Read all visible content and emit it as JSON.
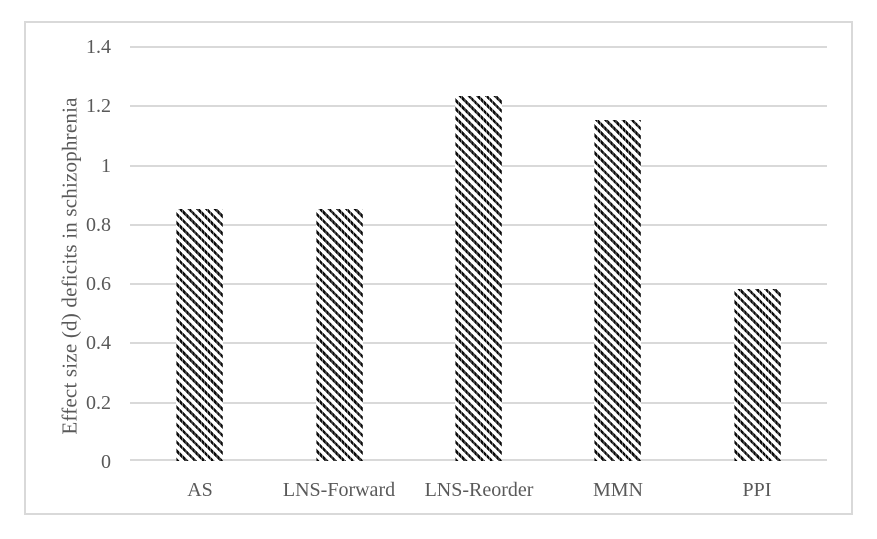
{
  "chart_data": {
    "type": "bar",
    "title": "",
    "xlabel": "",
    "ylabel": "Effect size (d) deficits in schizophrenia",
    "categories": [
      "AS",
      "LNS-Forward",
      "LNS-Reorder",
      "MMN",
      "PPI"
    ],
    "values": [
      0.85,
      0.85,
      1.23,
      1.15,
      0.58
    ],
    "yticks": [
      0,
      0.2,
      0.4,
      0.6,
      0.8,
      1,
      1.2,
      1.4
    ],
    "ytick_labels": [
      "0",
      "0.2",
      "0.4",
      "0.6",
      "0.8",
      "1",
      "1.2",
      "1.4"
    ],
    "ylim": [
      0,
      1.4
    ],
    "grid": true,
    "legend_position": "none",
    "bar_style": "diagonal-hatch",
    "colors": {
      "hatch": "#000000",
      "plot_background": "#ffffff",
      "gridline": "#d9d9d9",
      "axis_text": "#595959",
      "frame_border": "#d9d9d9"
    }
  }
}
